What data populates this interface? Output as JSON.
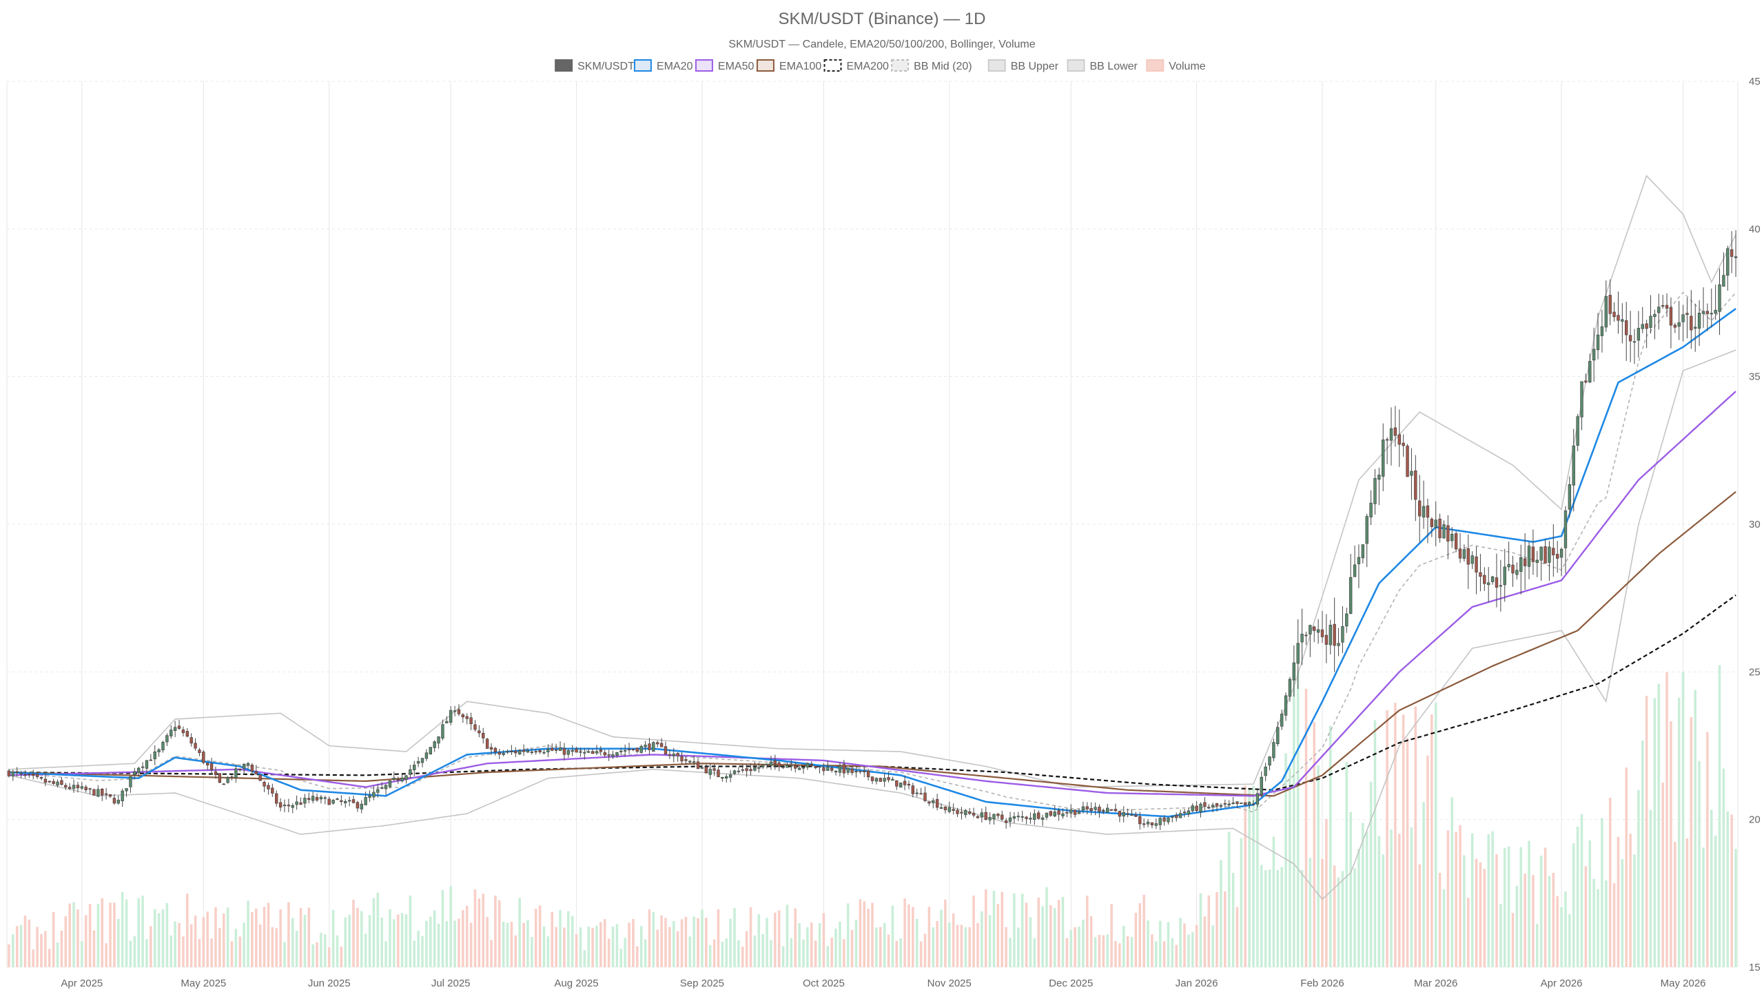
{
  "chart_data": {
    "type": "candlestick",
    "title": "SKM/USDT (Binance) — 1D",
    "subtitle": "SKM/USDT — Candele, EMA20/50/100/200, Bollinger, Volume",
    "legend": {
      "placement": "top-center",
      "items": [
        {
          "label": "SKM/USDT",
          "color": "#666666",
          "fill": "#666666",
          "dash": false
        },
        {
          "label": "EMA20",
          "color": "#1e88e5",
          "fill": "#dde9f6",
          "dash": false
        },
        {
          "label": "EMA50",
          "color": "#9c5de6",
          "fill": "#ece2f9",
          "dash": false
        },
        {
          "label": "EMA100",
          "color": "#8b5a3c",
          "fill": "#f1e6df",
          "dash": false
        },
        {
          "label": "EMA200",
          "color": "#222222",
          "fill": "#ffffff",
          "dash": true
        },
        {
          "label": "BB Mid (20)",
          "color": "#bbbbbb",
          "fill": "#eeeeee",
          "dash": true
        },
        {
          "label": "BB Upper",
          "color": "#cccccc",
          "fill": "#e6e6e6",
          "dash": false
        },
        {
          "label": "BB Lower",
          "color": "#cccccc",
          "fill": "#e6e6e6",
          "dash": false
        },
        {
          "label": "Volume",
          "color": "#f5c9c0",
          "fill": "#f8d3cb",
          "dash": false
        }
      ]
    },
    "x_axis": {
      "start": "2025-03-14",
      "end": "2026-05-14",
      "ticks": [
        {
          "date": "2025-04-01",
          "label": "Apr 2025"
        },
        {
          "date": "2025-05-01",
          "label": "May 2025"
        },
        {
          "date": "2025-06-01",
          "label": "Jun 2025"
        },
        {
          "date": "2025-07-01",
          "label": "Jul 2025"
        },
        {
          "date": "2025-08-01",
          "label": "Aug 2025"
        },
        {
          "date": "2025-09-01",
          "label": "Sep 2025"
        },
        {
          "date": "2025-10-01",
          "label": "Oct 2025"
        },
        {
          "date": "2025-11-01",
          "label": "Nov 2025"
        },
        {
          "date": "2025-12-01",
          "label": "Dec 2025"
        },
        {
          "date": "2026-01-01",
          "label": "Jan 2026"
        },
        {
          "date": "2026-02-01",
          "label": "Feb 2026"
        },
        {
          "date": "2026-03-01",
          "label": "Mar 2026"
        },
        {
          "date": "2026-04-01",
          "label": "Apr 2026"
        },
        {
          "date": "2026-05-01",
          "label": "May 2026"
        }
      ],
      "grid": true
    },
    "y_axis": {
      "position": "right",
      "min": 15,
      "max": 45,
      "ticks": [
        15,
        20,
        25,
        30,
        35,
        40,
        45
      ],
      "grid": true
    },
    "colors": {
      "up": "#5b8a6e",
      "down": "#a4584c",
      "volume_up": "#c9eed8",
      "volume_down": "#f8cfc7",
      "ema20": "#1e88e5",
      "ema50": "#9c5de6",
      "ema100": "#8b5a3c",
      "ema200": "#111111",
      "bb_mid": "#b3b3b3",
      "bb_band": "#c4c4c4"
    },
    "series_anchors": {
      "close": [
        [
          "2025-03-14",
          21.6
        ],
        [
          "2025-03-25",
          21.2
        ],
        [
          "2025-04-05",
          20.9
        ],
        [
          "2025-04-10",
          20.6
        ],
        [
          "2025-04-14",
          21.7
        ],
        [
          "2025-04-20",
          22.3
        ],
        [
          "2025-04-24",
          23.2
        ],
        [
          "2025-04-28",
          22.6
        ],
        [
          "2025-05-05",
          21.2
        ],
        [
          "2025-05-12",
          21.9
        ],
        [
          "2025-05-20",
          20.4
        ],
        [
          "2025-05-28",
          20.7
        ],
        [
          "2025-06-08",
          20.5
        ],
        [
          "2025-06-16",
          21.2
        ],
        [
          "2025-06-24",
          22.0
        ],
        [
          "2025-07-02",
          23.8
        ],
        [
          "2025-07-12",
          22.2
        ],
        [
          "2025-07-22",
          22.4
        ],
        [
          "2025-08-05",
          22.2
        ],
        [
          "2025-08-20",
          22.5
        ],
        [
          "2025-09-05",
          21.5
        ],
        [
          "2025-09-20",
          21.9
        ],
        [
          "2025-10-05",
          21.7
        ],
        [
          "2025-10-20",
          21.2
        ],
        [
          "2025-11-01",
          20.3
        ],
        [
          "2025-11-15",
          20.0
        ],
        [
          "2025-11-25",
          20.2
        ],
        [
          "2025-12-10",
          20.4
        ],
        [
          "2025-12-20",
          19.8
        ],
        [
          "2026-01-01",
          20.4
        ],
        [
          "2026-01-15",
          20.5
        ],
        [
          "2026-01-22",
          23.5
        ],
        [
          "2026-01-27",
          26.5
        ],
        [
          "2026-02-05",
          26.2
        ],
        [
          "2026-02-10",
          29.0
        ],
        [
          "2026-02-16",
          32.5
        ],
        [
          "2026-02-19",
          33.3
        ],
        [
          "2026-02-25",
          30.5
        ],
        [
          "2026-03-05",
          29.5
        ],
        [
          "2026-03-15",
          28.0
        ],
        [
          "2026-03-25",
          29.0
        ],
        [
          "2026-04-01",
          29.0
        ],
        [
          "2026-04-06",
          34.5
        ],
        [
          "2026-04-12",
          37.5
        ],
        [
          "2026-04-18",
          36.3
        ],
        [
          "2026-04-25",
          37.2
        ],
        [
          "2026-05-01",
          36.8
        ],
        [
          "2026-05-08",
          37.0
        ],
        [
          "2026-05-12",
          39.3
        ],
        [
          "2026-05-14",
          38.8
        ]
      ],
      "ema20": [
        [
          "2025-03-14",
          21.6
        ],
        [
          "2025-04-15",
          21.4
        ],
        [
          "2025-04-24",
          22.1
        ],
        [
          "2025-05-10",
          21.8
        ],
        [
          "2025-05-25",
          21.0
        ],
        [
          "2025-06-15",
          20.8
        ],
        [
          "2025-07-05",
          22.2
        ],
        [
          "2025-07-25",
          22.4
        ],
        [
          "2025-08-20",
          22.4
        ],
        [
          "2025-09-20",
          22.0
        ],
        [
          "2025-10-20",
          21.5
        ],
        [
          "2025-11-10",
          20.6
        ],
        [
          "2025-12-01",
          20.3
        ],
        [
          "2025-12-25",
          20.1
        ],
        [
          "2026-01-15",
          20.5
        ],
        [
          "2026-01-22",
          21.3
        ],
        [
          "2026-02-01",
          24.0
        ],
        [
          "2026-02-15",
          28.0
        ],
        [
          "2026-03-01",
          29.9
        ],
        [
          "2026-03-25",
          29.4
        ],
        [
          "2026-04-01",
          29.6
        ],
        [
          "2026-04-15",
          34.8
        ],
        [
          "2026-05-01",
          36.0
        ],
        [
          "2026-05-14",
          37.3
        ]
      ],
      "ema50": [
        [
          "2025-03-14",
          21.5
        ],
        [
          "2025-05-10",
          21.7
        ],
        [
          "2025-06-10",
          21.1
        ],
        [
          "2025-07-10",
          21.9
        ],
        [
          "2025-08-20",
          22.2
        ],
        [
          "2025-10-01",
          22.0
        ],
        [
          "2025-11-10",
          21.3
        ],
        [
          "2025-12-10",
          20.9
        ],
        [
          "2026-01-15",
          20.8
        ],
        [
          "2026-01-25",
          21.1
        ],
        [
          "2026-02-20",
          25.0
        ],
        [
          "2026-03-10",
          27.2
        ],
        [
          "2026-04-01",
          28.1
        ],
        [
          "2026-04-20",
          31.5
        ],
        [
          "2026-05-14",
          34.5
        ]
      ],
      "ema100": [
        [
          "2025-03-14",
          21.6
        ],
        [
          "2025-06-10",
          21.3
        ],
        [
          "2025-07-10",
          21.6
        ],
        [
          "2025-09-01",
          21.9
        ],
        [
          "2025-10-15",
          21.8
        ],
        [
          "2025-11-15",
          21.4
        ],
        [
          "2025-12-15",
          21.0
        ],
        [
          "2026-01-20",
          20.8
        ],
        [
          "2026-02-01",
          21.5
        ],
        [
          "2026-02-20",
          23.7
        ],
        [
          "2026-03-15",
          25.2
        ],
        [
          "2026-04-05",
          26.4
        ],
        [
          "2026-04-25",
          29.0
        ],
        [
          "2026-05-14",
          31.1
        ]
      ],
      "ema200": [
        [
          "2025-03-14",
          21.6
        ],
        [
          "2025-06-10",
          21.5
        ],
        [
          "2025-07-20",
          21.7
        ],
        [
          "2025-09-01",
          21.8
        ],
        [
          "2025-10-15",
          21.8
        ],
        [
          "2025-11-15",
          21.6
        ],
        [
          "2025-12-20",
          21.2
        ],
        [
          "2026-01-20",
          21.0
        ],
        [
          "2026-02-01",
          21.4
        ],
        [
          "2026-02-20",
          22.6
        ],
        [
          "2026-03-20",
          23.7
        ],
        [
          "2026-04-10",
          24.6
        ],
        [
          "2026-05-01",
          26.3
        ],
        [
          "2026-05-14",
          27.6
        ]
      ],
      "bb_upper": [
        [
          "2025-03-14",
          21.7
        ],
        [
          "2025-04-14",
          21.9
        ],
        [
          "2025-04-24",
          23.4
        ],
        [
          "2025-05-20",
          23.6
        ],
        [
          "2025-06-01",
          22.5
        ],
        [
          "2025-06-20",
          22.3
        ],
        [
          "2025-07-05",
          24.0
        ],
        [
          "2025-07-25",
          23.6
        ],
        [
          "2025-08-10",
          22.8
        ],
        [
          "2025-09-20",
          22.4
        ],
        [
          "2025-10-20",
          22.3
        ],
        [
          "2025-11-10",
          21.8
        ],
        [
          "2025-12-01",
          21.1
        ],
        [
          "2026-01-15",
          21.2
        ],
        [
          "2026-01-25",
          24.5
        ],
        [
          "2026-02-10",
          31.5
        ],
        [
          "2026-02-25",
          33.8
        ],
        [
          "2026-03-20",
          32.0
        ],
        [
          "2026-04-01",
          30.5
        ],
        [
          "2026-04-10",
          37.0
        ],
        [
          "2026-04-22",
          41.8
        ],
        [
          "2026-05-01",
          40.5
        ],
        [
          "2026-05-08",
          38.2
        ],
        [
          "2026-05-14",
          39.8
        ]
      ],
      "bb_lower": [
        [
          "2025-03-14",
          21.5
        ],
        [
          "2025-04-05",
          20.8
        ],
        [
          "2025-04-24",
          20.9
        ],
        [
          "2025-05-25",
          19.5
        ],
        [
          "2025-06-15",
          19.8
        ],
        [
          "2025-07-05",
          20.2
        ],
        [
          "2025-07-25",
          21.4
        ],
        [
          "2025-08-20",
          21.7
        ],
        [
          "2025-09-25",
          21.4
        ],
        [
          "2025-10-20",
          20.9
        ],
        [
          "2025-11-15",
          19.9
        ],
        [
          "2025-12-10",
          19.5
        ],
        [
          "2026-01-10",
          19.7
        ],
        [
          "2026-01-25",
          18.5
        ],
        [
          "2026-02-01",
          17.3
        ],
        [
          "2026-02-08",
          18.2
        ],
        [
          "2026-02-20",
          22.5
        ],
        [
          "2026-03-10",
          25.8
        ],
        [
          "2026-04-01",
          26.4
        ],
        [
          "2026-04-12",
          24.0
        ],
        [
          "2026-04-20",
          30.0
        ],
        [
          "2026-05-01",
          35.2
        ],
        [
          "2026-05-14",
          35.9
        ]
      ],
      "volume": [
        [
          "2025-03-14",
          16.4
        ],
        [
          "2025-04-10",
          17.3
        ],
        [
          "2025-05-01",
          17.2
        ],
        [
          "2025-06-01",
          16.9
        ],
        [
          "2025-07-01",
          17.8
        ],
        [
          "2025-08-01",
          16.6
        ],
        [
          "2025-09-01",
          16.8
        ],
        [
          "2025-10-01",
          17.0
        ],
        [
          "2025-11-01",
          17.3
        ],
        [
          "2025-12-01",
          17.4
        ],
        [
          "2026-01-01",
          17.0
        ],
        [
          "2026-01-25",
          24.0
        ],
        [
          "2026-02-10",
          22.5
        ],
        [
          "2026-02-25",
          24.5
        ],
        [
          "2026-03-10",
          19.5
        ],
        [
          "2026-04-01",
          18.5
        ],
        [
          "2026-04-20",
          23.0
        ],
        [
          "2026-05-14",
          25.5
        ]
      ]
    }
  }
}
